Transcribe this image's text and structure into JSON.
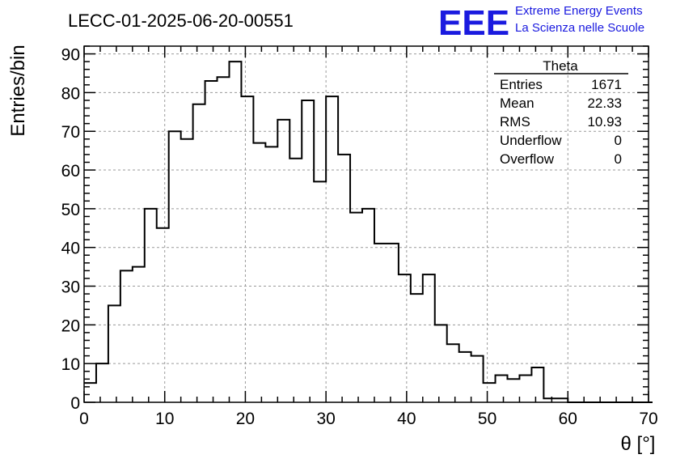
{
  "plot_title": "LECC-01-2025-06-20-00551",
  "logo": {
    "mark": "EEE",
    "line1": "Extreme Energy Events",
    "line2": "La Scienza nelle Scuole",
    "color": "#1a1adf"
  },
  "stats_box": {
    "name": "Theta",
    "rows": [
      {
        "label": "Entries",
        "value": "1671"
      },
      {
        "label": "Mean",
        "value": "22.33"
      },
      {
        "label": "RMS",
        "value": "10.93"
      },
      {
        "label": "Underflow",
        "value": "0"
      },
      {
        "label": "Overflow",
        "value": "0"
      }
    ]
  },
  "chart_data": {
    "type": "bar",
    "title": "LECC-01-2025-06-20-00551",
    "xlabel": "θ [°]",
    "ylabel": "Entries/bin",
    "xlim": [
      0,
      70
    ],
    "ylim": [
      0,
      92
    ],
    "bin_width": 1.5,
    "x_ticks": [
      0,
      10,
      20,
      30,
      40,
      50,
      60,
      70
    ],
    "y_ticks": [
      0,
      10,
      20,
      30,
      40,
      50,
      60,
      70,
      80,
      90
    ],
    "grid": true,
    "values": [
      5,
      10,
      25,
      34,
      35,
      50,
      45,
      70,
      68,
      77,
      83,
      84,
      88,
      79,
      67,
      66,
      73,
      63,
      78,
      57,
      79,
      64,
      49,
      50,
      41,
      41,
      33,
      28,
      33,
      20,
      15,
      13,
      12,
      5,
      7,
      6,
      7,
      9,
      1,
      1,
      0,
      0,
      0,
      0,
      0,
      0,
      0
    ],
    "line_color": "#000000"
  }
}
